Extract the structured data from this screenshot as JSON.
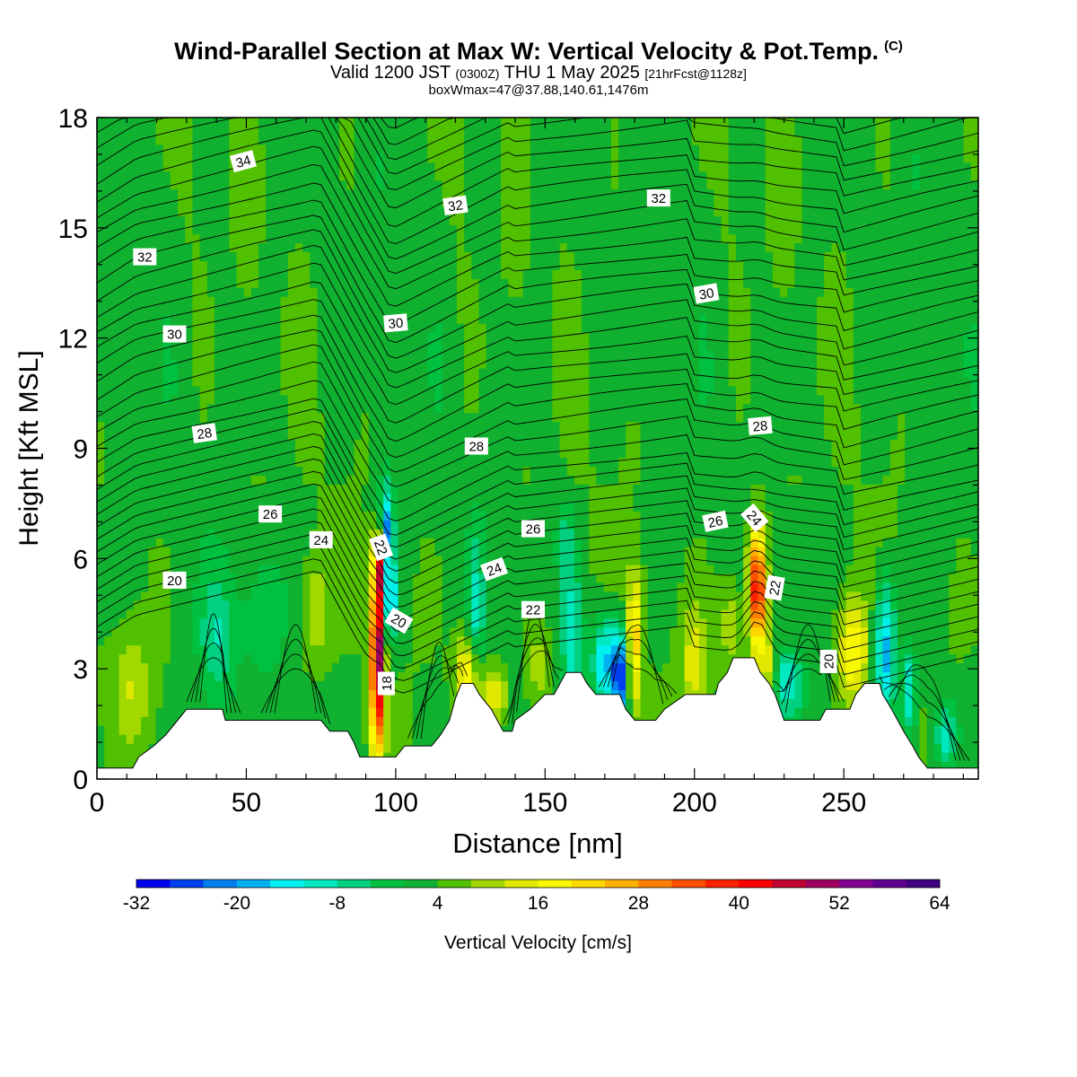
{
  "title": {
    "main": "Wind-Parallel Section at Max W: Vertical Velocity & Pot.Temp.",
    "copyright": "(C)",
    "valid_prefix": "Valid 1200 JST",
    "valid_utc": "(0300Z)",
    "valid_date": "THU 1 May 2025",
    "forecast": "[21hrFcst@1128z]",
    "box": "boxWmax=47@37.88,140.61,1476m"
  },
  "chart_data": {
    "type": "heatmap",
    "xlabel": "Distance [nm]",
    "ylabel": "Height [Kft MSL]",
    "xlim": [
      0,
      295
    ],
    "ylim": [
      0,
      18
    ],
    "xticks": [
      0,
      50,
      100,
      150,
      200,
      250
    ],
    "yticks": [
      0,
      3,
      6,
      9,
      12,
      15,
      18
    ],
    "colorbar": {
      "label": "Vertical Velocity [cm/s]",
      "range": [
        -32,
        64
      ],
      "step": 4,
      "tick_labels": [
        -32,
        -20,
        -8,
        4,
        16,
        28,
        40,
        52,
        64
      ],
      "colors": [
        "#0000f0",
        "#0040f0",
        "#0080f0",
        "#00b0f0",
        "#00f0f0",
        "#00e8c0",
        "#00d080",
        "#00c040",
        "#10b030",
        "#50c000",
        "#a0d800",
        "#e0e800",
        "#f8f800",
        "#ffd800",
        "#ffb000",
        "#ff8000",
        "#ff5000",
        "#ff2000",
        "#ff0000",
        "#c00030",
        "#a00060",
        "#800090",
        "#600090",
        "#400080"
      ]
    },
    "theta_contours": [
      18,
      20,
      22,
      24,
      26,
      28,
      30,
      32,
      34
    ],
    "contour_labels": [
      {
        "text": "34",
        "x": 49,
        "y": 16.8,
        "rot": -15
      },
      {
        "text": "32",
        "x": 16,
        "y": 14.2,
        "rot": 0
      },
      {
        "text": "32",
        "x": 120,
        "y": 15.6,
        "rot": -8
      },
      {
        "text": "32",
        "x": 188,
        "y": 15.8,
        "rot": 0
      },
      {
        "text": "30",
        "x": 26,
        "y": 12.1,
        "rot": 0
      },
      {
        "text": "30",
        "x": 100,
        "y": 12.4,
        "rot": -5
      },
      {
        "text": "30",
        "x": 204,
        "y": 13.2,
        "rot": -10
      },
      {
        "text": "28",
        "x": 36,
        "y": 9.4,
        "rot": -8
      },
      {
        "text": "28",
        "x": 127,
        "y": 9.05,
        "rot": 0
      },
      {
        "text": "28",
        "x": 222,
        "y": 9.6,
        "rot": -5
      },
      {
        "text": "26",
        "x": 58,
        "y": 7.2,
        "rot": 0
      },
      {
        "text": "26",
        "x": 146,
        "y": 6.8,
        "rot": 0
      },
      {
        "text": "26",
        "x": 207,
        "y": 7.0,
        "rot": -12
      },
      {
        "text": "24",
        "x": 75,
        "y": 6.5,
        "rot": 0
      },
      {
        "text": "24",
        "x": 133,
        "y": 5.7,
        "rot": -20
      },
      {
        "text": "24",
        "x": 220,
        "y": 7.1,
        "rot": 50
      },
      {
        "text": "22",
        "x": 95,
        "y": 6.3,
        "rot": 70
      },
      {
        "text": "22",
        "x": 146,
        "y": 4.6,
        "rot": 0
      },
      {
        "text": "22",
        "x": 227,
        "y": 5.2,
        "rot": -80
      },
      {
        "text": "20",
        "x": 26,
        "y": 5.4,
        "rot": 0
      },
      {
        "text": "20",
        "x": 101,
        "y": 4.3,
        "rot": 30
      },
      {
        "text": "20",
        "x": 245,
        "y": 3.2,
        "rot": -90
      },
      {
        "text": "18",
        "x": 97,
        "y": 2.6,
        "rot": -90
      }
    ],
    "terrain": [
      [
        0,
        0.3
      ],
      [
        12,
        0.3
      ],
      [
        14,
        0.6
      ],
      [
        19,
        0.9
      ],
      [
        23,
        1.2
      ],
      [
        27,
        1.6
      ],
      [
        30,
        1.9
      ],
      [
        42,
        1.9
      ],
      [
        43,
        1.6
      ],
      [
        75,
        1.6
      ],
      [
        78,
        1.3
      ],
      [
        84,
        1.3
      ],
      [
        86,
        1.0
      ],
      [
        88,
        0.6
      ],
      [
        97,
        0.6
      ],
      [
        100,
        0.6
      ],
      [
        103,
        0.9
      ],
      [
        112,
        0.9
      ],
      [
        115,
        1.2
      ],
      [
        118,
        1.6
      ],
      [
        120,
        2.2
      ],
      [
        122,
        2.6
      ],
      [
        126,
        2.6
      ],
      [
        128,
        2.3
      ],
      [
        132,
        1.9
      ],
      [
        134,
        1.6
      ],
      [
        136,
        1.3
      ],
      [
        139,
        1.3
      ],
      [
        140,
        1.6
      ],
      [
        145,
        1.9
      ],
      [
        150,
        2.3
      ],
      [
        153,
        2.3
      ],
      [
        155,
        2.6
      ],
      [
        157,
        2.9
      ],
      [
        162,
        2.9
      ],
      [
        164,
        2.6
      ],
      [
        167,
        2.3
      ],
      [
        175,
        2.3
      ],
      [
        177,
        1.9
      ],
      [
        180,
        1.6
      ],
      [
        187,
        1.6
      ],
      [
        190,
        1.9
      ],
      [
        197,
        2.3
      ],
      [
        207,
        2.3
      ],
      [
        208,
        2.6
      ],
      [
        211,
        2.9
      ],
      [
        213,
        3.3
      ],
      [
        220,
        3.3
      ],
      [
        222,
        2.9
      ],
      [
        225,
        2.6
      ],
      [
        227,
        2.3
      ],
      [
        230,
        1.6
      ],
      [
        242,
        1.6
      ],
      [
        244,
        1.9
      ],
      [
        252,
        1.9
      ],
      [
        254,
        2.3
      ],
      [
        257,
        2.6
      ],
      [
        262,
        2.6
      ],
      [
        263,
        2.3
      ],
      [
        266,
        1.9
      ],
      [
        270,
        1.3
      ],
      [
        273,
        0.9
      ],
      [
        275,
        0.6
      ],
      [
        278,
        0.3
      ],
      [
        295,
        0.3
      ]
    ],
    "w_features": [
      {
        "x": 94,
        "z": 3.4,
        "wx": 2.3,
        "wz": 2.6,
        "v": 50
      },
      {
        "x": 94.5,
        "z": 5.8,
        "wx": 1.6,
        "wz": 0.8,
        "v": 26
      },
      {
        "x": 98,
        "z": 5.0,
        "wx": 2.0,
        "wz": 1.2,
        "v": -30
      },
      {
        "x": 97,
        "z": 6.8,
        "wx": 2.0,
        "wz": 0.8,
        "v": -18
      },
      {
        "x": 221,
        "z": 5.2,
        "wx": 3.0,
        "wz": 1.7,
        "v": 40
      },
      {
        "x": 225,
        "z": 3.0,
        "wx": 2.5,
        "wz": 1.0,
        "v": 12
      },
      {
        "x": 231,
        "z": 2.6,
        "wx": 5.0,
        "wz": 0.9,
        "v": -14
      },
      {
        "x": 175,
        "z": 2.8,
        "wx": 2.5,
        "wz": 1.2,
        "v": -30
      },
      {
        "x": 170,
        "z": 3.2,
        "wx": 4.0,
        "wz": 1.2,
        "v": -20
      },
      {
        "x": 180,
        "z": 3.8,
        "wx": 2.5,
        "wz": 1.8,
        "v": 18
      },
      {
        "x": 159,
        "z": 4.0,
        "wx": 3.5,
        "wz": 1.8,
        "v": -14
      },
      {
        "x": 124,
        "z": 2.9,
        "wx": 4.0,
        "wz": 1.0,
        "v": 18
      },
      {
        "x": 133,
        "z": 2.3,
        "wx": 4.0,
        "wz": 0.8,
        "v": 14
      },
      {
        "x": 127,
        "z": 4.5,
        "wx": 2.5,
        "wz": 2.0,
        "v": -12
      },
      {
        "x": 253,
        "z": 3.5,
        "wx": 5.0,
        "wz": 1.4,
        "v": 18
      },
      {
        "x": 264,
        "z": 3.6,
        "wx": 3.5,
        "wz": 1.8,
        "v": -22
      },
      {
        "x": 272,
        "z": 2.4,
        "wx": 2.5,
        "wz": 1.2,
        "v": -16
      },
      {
        "x": 40,
        "z": 3.8,
        "wx": 6.0,
        "wz": 1.8,
        "v": -10
      },
      {
        "x": 56,
        "z": 4.6,
        "wx": 7.0,
        "wz": 1.6,
        "v": -6
      },
      {
        "x": 73,
        "z": 4.6,
        "wx": 5.0,
        "wz": 1.5,
        "v": 8
      },
      {
        "x": 12,
        "z": 2.5,
        "wx": 6.0,
        "wz": 1.5,
        "v": 8
      },
      {
        "x": 200,
        "z": 3.2,
        "wx": 4.0,
        "wz": 1.4,
        "v": 12
      },
      {
        "x": 212,
        "z": 4.2,
        "wx": 4.0,
        "wz": 1.3,
        "v": 8
      },
      {
        "x": 148,
        "z": 3.0,
        "wx": 5.0,
        "wz": 1.2,
        "v": 8
      },
      {
        "x": 96,
        "z": 7.5,
        "wx": 3.0,
        "wz": 1.0,
        "v": -10
      },
      {
        "x": 157,
        "z": 6.6,
        "wx": 3.0,
        "wz": 1.0,
        "v": -8
      },
      {
        "x": 284,
        "z": 1.2,
        "wx": 4.0,
        "wz": 1.0,
        "v": -14
      }
    ]
  }
}
